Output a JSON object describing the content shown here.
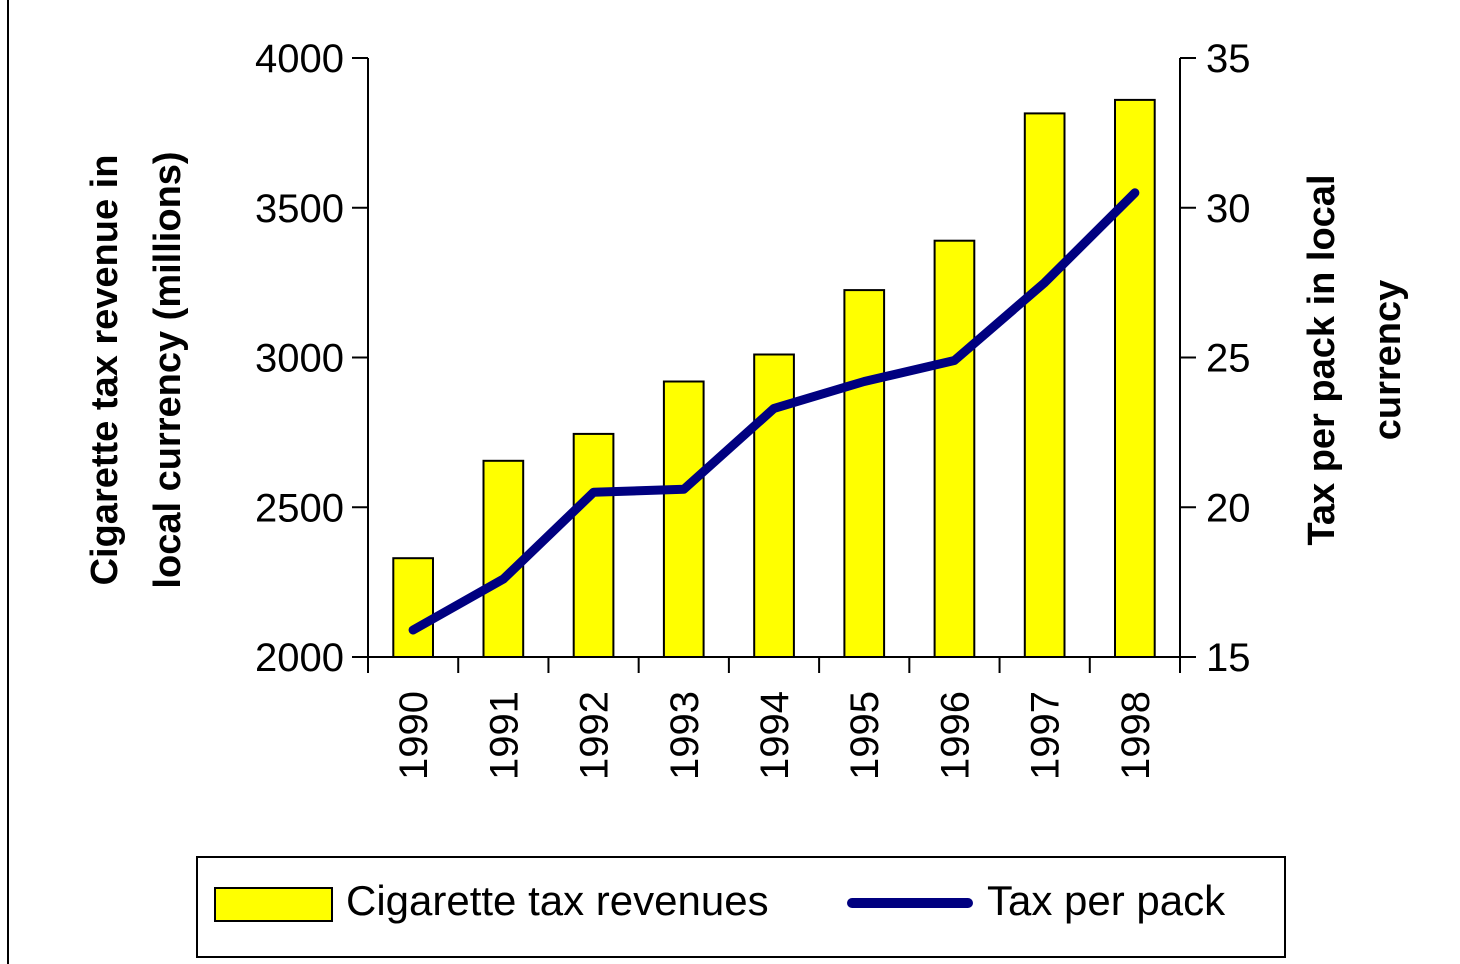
{
  "chart_data": {
    "type": "bar",
    "categories": [
      "1990",
      "1991",
      "1992",
      "1993",
      "1994",
      "1995",
      "1996",
      "1997",
      "1998"
    ],
    "series": [
      {
        "name": "Cigarette tax revenues",
        "type": "bar",
        "axis": "left",
        "values": [
          2330,
          2655,
          2745,
          2920,
          3010,
          3225,
          3390,
          3815,
          3860
        ]
      },
      {
        "name": "Tax per pack",
        "type": "line",
        "axis": "right",
        "values": [
          15.9,
          17.6,
          20.5,
          20.6,
          23.3,
          24.2,
          24.9,
          27.5,
          30.5
        ]
      }
    ],
    "ylabel": "Cigarette tax revenue in local currency (millions)",
    "ylabel_lines": [
      "Cigarette tax revenue in",
      "local currency (millions)"
    ],
    "ylim": [
      2000,
      4000
    ],
    "yticks": [
      "2000",
      "2500",
      "3000",
      "3500",
      "4000"
    ],
    "ylabel_right": "Tax per pack in local currency",
    "ylabel_right_lines": [
      "Tax per pack in local",
      "currency"
    ],
    "ylim_right": [
      15,
      35
    ],
    "yticks_right": [
      "15",
      "20",
      "25",
      "30",
      "35"
    ],
    "legend_position": "bottom",
    "grid": false,
    "colors": {
      "bar_fill": "#FFFF00",
      "bar_stroke": "#000000",
      "line": "#000080"
    }
  }
}
